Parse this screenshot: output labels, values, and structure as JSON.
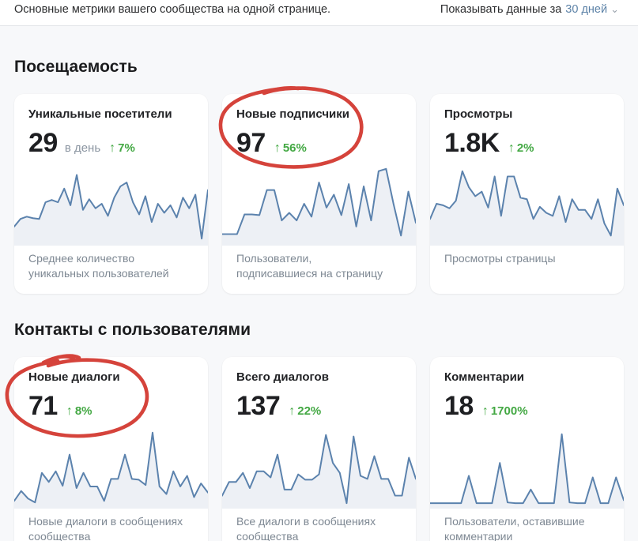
{
  "header": {
    "subtitle": "Основные метрики вашего сообщества на одной странице.",
    "period_label": "Показывать данные за",
    "period_value": "30 дней"
  },
  "icons": {
    "up_arrow": "↑",
    "chevron_down": "⌄"
  },
  "colors": {
    "accent_link": "#5c82a7",
    "positive_green": "#43a843",
    "spark_line": "#5b82ad",
    "spark_fill": "#edf0f5",
    "marker_red": "#d5433b",
    "page_bg": "#f7f8fa"
  },
  "sections": [
    {
      "title": "Посещаемость",
      "cards": [
        {
          "title": "Уникальные посетители",
          "value": "29",
          "unit": "в день",
          "delta": "7%",
          "caption": "Среднее количество уникальных пользователей",
          "circled": false,
          "spark": [
            20,
            30,
            33,
            31,
            30,
            52,
            55,
            52,
            70,
            48,
            88,
            42,
            56,
            44,
            50,
            34,
            58,
            73,
            78,
            52,
            36,
            60,
            26,
            50,
            38,
            48,
            32,
            58,
            44,
            62,
            4,
            68
          ]
        },
        {
          "title": "Новые подписчики",
          "value": "97",
          "delta": "56%",
          "caption": "Пользователи, подписавшиеся на страницу",
          "circled": true,
          "spark": [
            10,
            10,
            10,
            36,
            36,
            35,
            68,
            68,
            28,
            38,
            28,
            50,
            33,
            78,
            45,
            62,
            35,
            76,
            20,
            73,
            28,
            93,
            96,
            50,
            8,
            66,
            25
          ]
        },
        {
          "title": "Просмотры",
          "value": "1.8K",
          "delta": "2%",
          "caption": "Просмотры страницы",
          "circled": false,
          "spark": [
            30,
            50,
            48,
            44,
            54,
            93,
            72,
            60,
            66,
            45,
            86,
            34,
            86,
            86,
            58,
            56,
            30,
            46,
            38,
            34,
            60,
            26,
            56,
            42,
            42,
            30,
            56,
            24,
            8,
            70,
            48
          ]
        }
      ]
    },
    {
      "title": "Контакты с пользователями",
      "cards": [
        {
          "title": "Новые диалоги",
          "value": "71",
          "delta": "8%",
          "caption": "Новые диалоги в сообщениях сообщества",
          "circled": true,
          "spark": [
            5,
            18,
            8,
            3,
            42,
            30,
            44,
            25,
            66,
            22,
            42,
            24,
            24,
            5,
            34,
            34,
            66,
            34,
            33,
            26,
            95,
            24,
            14,
            44,
            24,
            38,
            10,
            28,
            16
          ]
        },
        {
          "title": "Всего диалогов",
          "value": "137",
          "delta": "22%",
          "caption": "Все диалоги в сообщениях сообщества",
          "circled": false,
          "spark": [
            12,
            30,
            30,
            42,
            22,
            44,
            44,
            36,
            66,
            20,
            20,
            40,
            33,
            33,
            40,
            92,
            55,
            42,
            2,
            90,
            38,
            34,
            64,
            34,
            34,
            12,
            12,
            62,
            34
          ]
        },
        {
          "title": "Комментарии",
          "value": "18",
          "delta": "1700%",
          "caption": "Пользователи, оставившие комментарии",
          "circled": false,
          "spark": [
            2,
            2,
            2,
            2,
            2,
            38,
            2,
            2,
            2,
            55,
            3,
            2,
            2,
            20,
            2,
            2,
            2,
            93,
            3,
            2,
            2,
            36,
            2,
            2,
            36,
            6
          ]
        }
      ]
    }
  ]
}
